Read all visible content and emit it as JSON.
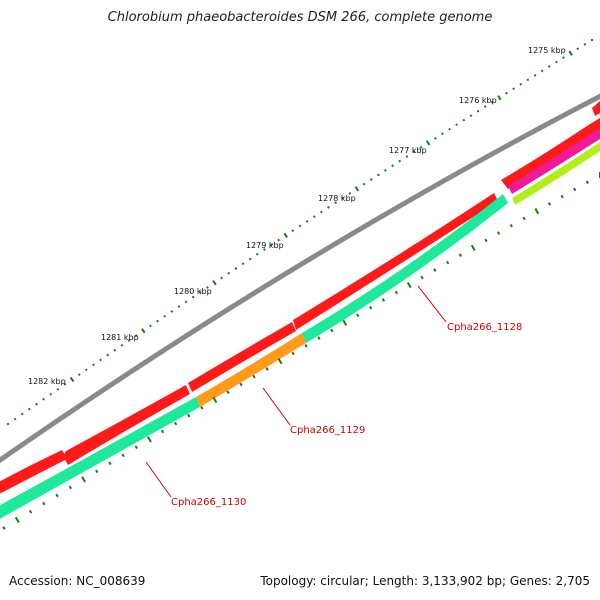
{
  "title": "Chlorobium phaeobacteroides DSM 266, complete genome",
  "footer": {
    "accession_label": "Accession:",
    "accession": "NC_008639",
    "topology_label": "Topology:",
    "topology": "circular",
    "length_label": "Length:",
    "length": "3,133,902 bp",
    "genes_label": "Genes:",
    "genes": "2,705"
  },
  "colors": {
    "backbone": "#8a8a8a",
    "strand_plus": "#ff1a1a",
    "cds_minus": "#1ee89a",
    "cds_orange": "#ff9a1a",
    "cds_magenta": "#ee1a9a",
    "cds_lime": "#b2ee1a",
    "tick": "#1a7a1a",
    "label": "#cc0000"
  },
  "ticks": [
    {
      "label": "1275 kbp"
    },
    {
      "label": "1276 kbp"
    },
    {
      "label": "1277 kbp"
    },
    {
      "label": "1278 kbp"
    },
    {
      "label": "1279 kbp"
    },
    {
      "label": "1280 kbp"
    },
    {
      "label": "1281 kbp"
    },
    {
      "label": "1282 kbp"
    }
  ],
  "genes": [
    {
      "name": "Cpha266_1128"
    },
    {
      "name": "Cpha266_1129"
    },
    {
      "name": "Cpha266_1130"
    }
  ]
}
